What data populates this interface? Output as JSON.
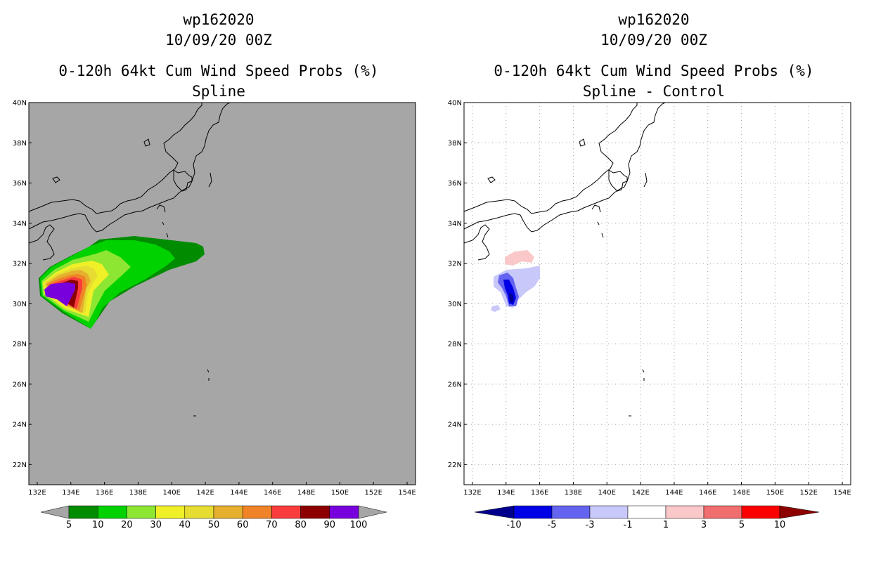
{
  "left_panel": {
    "storm_id": "wp162020",
    "datetime": "10/09/20 00Z",
    "product": "0-120h 64kt Cum Wind Speed Probs (%)",
    "subtitle": "Spline",
    "colorbar": {
      "colors": [
        "#008c00",
        "#00d200",
        "#8ce632",
        "#f0f028",
        "#e6dc32",
        "#e6af2d",
        "#f08228",
        "#fa3c3c",
        "#8c0000",
        "#7800dc"
      ],
      "end_color": "#a6a6a6",
      "labels": [
        "5",
        "10",
        "20",
        "30",
        "40",
        "50",
        "60",
        "70",
        "80",
        "90",
        "100"
      ]
    }
  },
  "right_panel": {
    "storm_id": "wp162020",
    "datetime": "10/09/20 00Z",
    "product": "0-120h 64kt Cum Wind Speed Probs (%)",
    "subtitle": "Spline - Control",
    "colorbar": {
      "colors": [
        "#00008c",
        "#0000e6",
        "#6464f0",
        "#c8c8fa",
        "#ffffff",
        "#fac8c8",
        "#f06e6e",
        "#fa0000",
        "#8c0000"
      ],
      "labels": [
        "-10",
        "-5",
        "-3",
        "-1",
        "1",
        "3",
        "5",
        "10"
      ]
    }
  },
  "map": {
    "lon_labels": [
      "132E",
      "134E",
      "136E",
      "138E",
      "140E",
      "142E",
      "144E",
      "146E",
      "148E",
      "150E",
      "152E",
      "154E"
    ],
    "lat_labels": [
      "40N",
      "38N",
      "36N",
      "34N",
      "32N",
      "30N",
      "28N",
      "26N",
      "24N",
      "22N"
    ],
    "lon_range": [
      131.5,
      154.5
    ],
    "lat_range": [
      21,
      40
    ],
    "background_left": "#a6a6a6",
    "background_right": "#ffffff",
    "coastline_color": "#000000",
    "grid": "dotted (right panel)"
  },
  "field": {
    "left_probability_pct": {
      "max": 100,
      "centre": "133.5E 30.5N"
    },
    "right_difference_pct": {
      "min": -10,
      "max": 3
    }
  }
}
